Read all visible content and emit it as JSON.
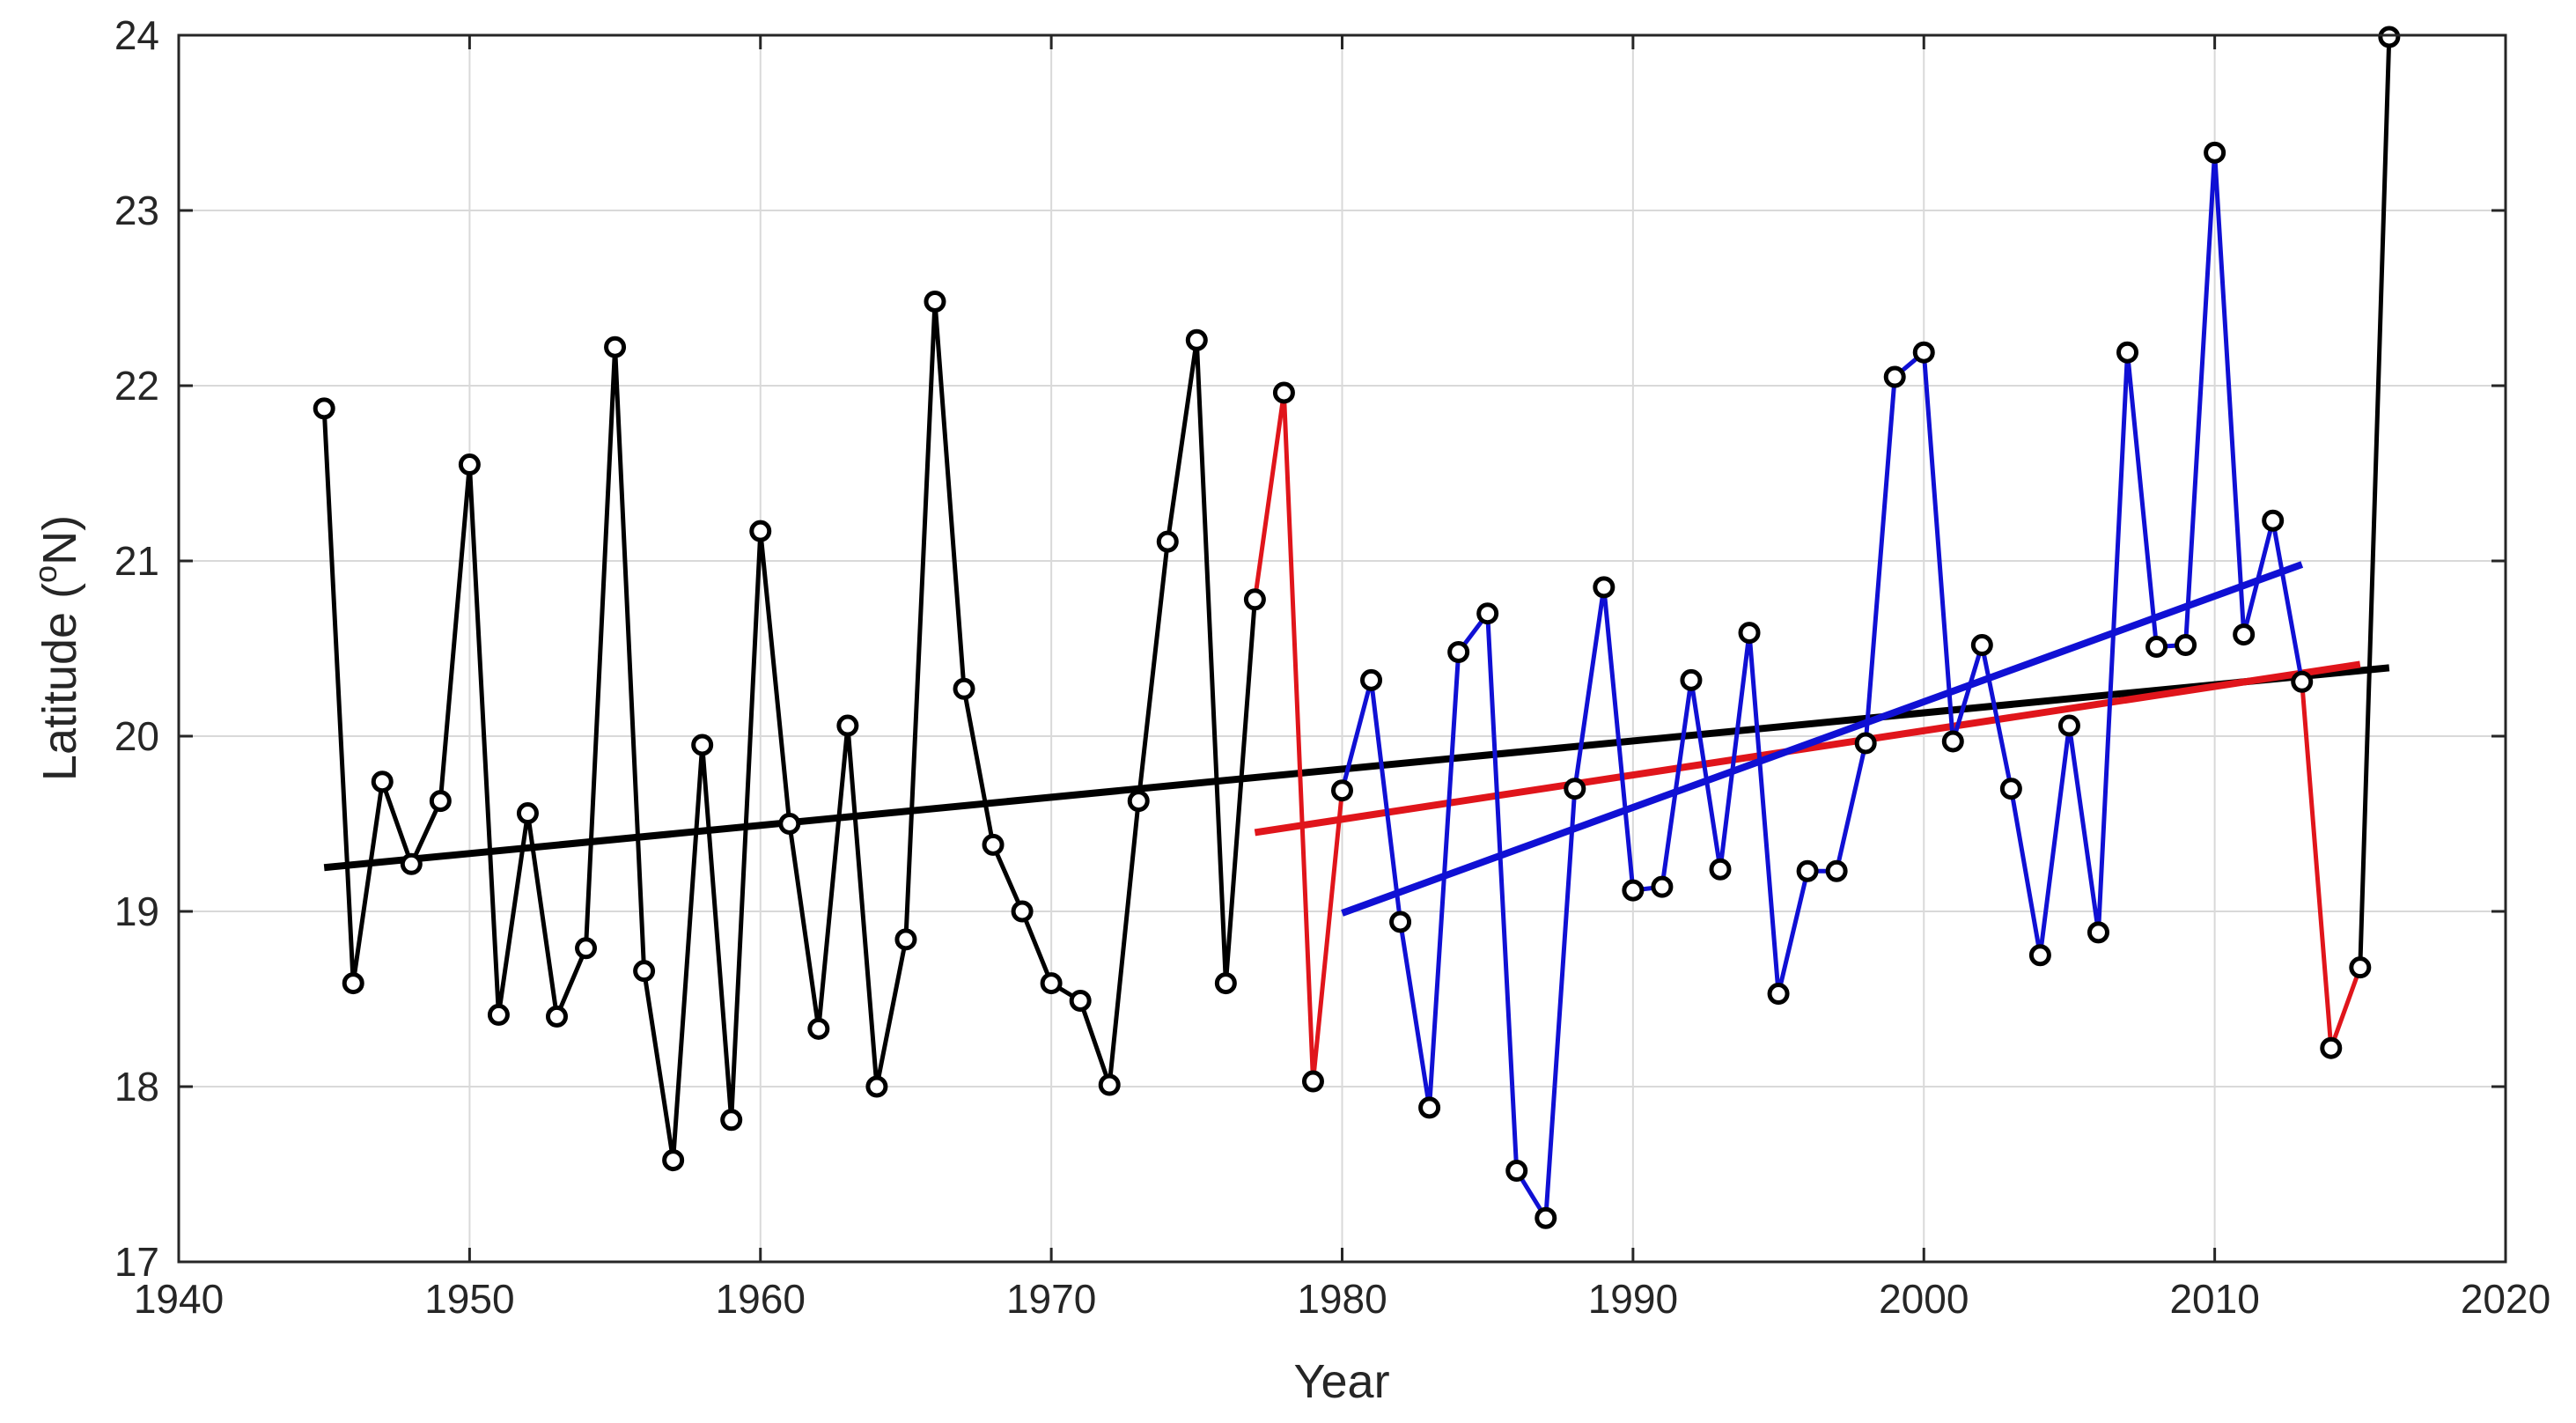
{
  "chart_data": {
    "type": "line",
    "title": "",
    "xlabel": "Year",
    "ylabel_main": "Latitude (",
    "ylabel_sup": "o",
    "ylabel_end": "N)",
    "xlim": [
      1940,
      2020
    ],
    "ylim": [
      17,
      24
    ],
    "xticks": [
      "1940",
      "1950",
      "1960",
      "1970",
      "1980",
      "1990",
      "2000",
      "2010",
      "2020"
    ],
    "yticks": [
      "17",
      "18",
      "19",
      "20",
      "21",
      "22",
      "23",
      "24"
    ],
    "grid": true,
    "series": [
      {
        "name": "black-series",
        "color": "#000000",
        "x": [
          1945,
          1946,
          1947,
          1948,
          1949,
          1950,
          1951,
          1952,
          1953,
          1954,
          1955,
          1956,
          1957,
          1958,
          1959,
          1960,
          1961,
          1962,
          1963,
          1964,
          1965,
          1966,
          1967,
          1968,
          1969,
          1970,
          1971,
          1972,
          1973,
          1974,
          1975,
          1976,
          1977
        ],
        "y": [
          21.87,
          18.59,
          19.74,
          19.27,
          19.63,
          21.55,
          18.41,
          19.56,
          18.4,
          18.79,
          22.22,
          18.66,
          17.58,
          19.95,
          17.81,
          21.17,
          19.5,
          18.33,
          20.06,
          18.0,
          18.84,
          22.48,
          20.27,
          19.38,
          19.0,
          18.59,
          18.49,
          18.01,
          19.63,
          21.11,
          22.26,
          18.59,
          20.78
        ]
      },
      {
        "name": "red-series",
        "color": "#e0151b",
        "x": [
          1977,
          1978,
          1979,
          1980
        ],
        "y": [
          20.78,
          21.96,
          18.03,
          19.69
        ]
      },
      {
        "name": "blue-series",
        "color": "#1010d4",
        "x": [
          1980,
          1981,
          1982,
          1983,
          1984,
          1985,
          1986,
          1987,
          1988,
          1989,
          1990,
          1991,
          1992,
          1993,
          1994,
          1995,
          1996,
          1997,
          1998,
          1999,
          2000,
          2001,
          2002,
          2003,
          2004,
          2005,
          2006,
          2007,
          2008,
          2009,
          2010,
          2011,
          2012,
          2013
        ],
        "y": [
          19.69,
          20.32,
          18.94,
          17.88,
          20.48,
          20.7,
          17.52,
          17.25,
          19.7,
          20.85,
          19.12,
          19.14,
          20.32,
          19.24,
          20.59,
          18.53,
          19.23,
          19.23,
          19.96,
          22.05,
          22.19,
          19.97,
          20.52,
          19.7,
          18.75,
          20.06,
          18.88,
          22.19,
          20.51,
          20.52,
          23.33,
          20.58,
          21.23,
          20.31
        ]
      },
      {
        "name": "red-series-end",
        "color": "#e0151b",
        "x": [
          2013,
          2014,
          2015
        ],
        "y": [
          20.31,
          18.22,
          18.68
        ]
      },
      {
        "name": "black-series-end",
        "color": "#000000",
        "x": [
          2015,
          2016
        ],
        "y": [
          18.68,
          23.99
        ]
      }
    ],
    "trend_lines": [
      {
        "name": "black-trend",
        "color": "#000000",
        "x": [
          1945,
          2016
        ],
        "y": [
          19.25,
          20.39
        ]
      },
      {
        "name": "red-trend",
        "color": "#e0151b",
        "x": [
          1977,
          2015
        ],
        "y": [
          19.45,
          20.41
        ]
      },
      {
        "name": "blue-trend",
        "color": "#1010d4",
        "x": [
          1980,
          2013
        ],
        "y": [
          18.99,
          20.98
        ]
      }
    ]
  }
}
